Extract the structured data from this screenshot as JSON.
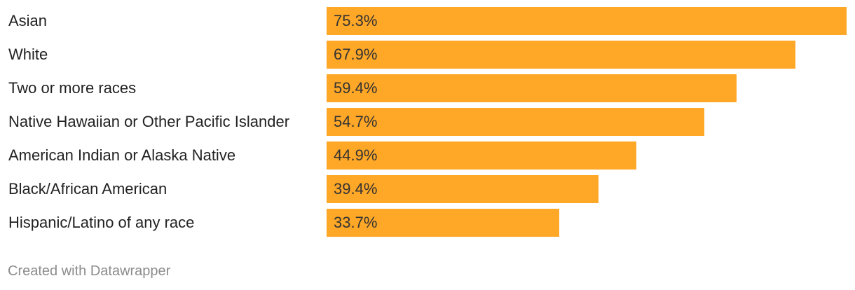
{
  "chart_data": {
    "type": "bar",
    "orientation": "horizontal",
    "categories": [
      "Asian",
      "White",
      "Two or more races",
      "Native Hawaiian or Other Pacific Islander",
      "American Indian or Alaska Native",
      "Black/African American",
      "Hispanic/Latino of any race"
    ],
    "values": [
      75.3,
      67.9,
      59.4,
      54.7,
      44.9,
      39.4,
      33.7
    ],
    "value_labels": [
      "75.3%",
      "67.9%",
      "59.4%",
      "54.7%",
      "44.9%",
      "39.4%",
      "33.7%"
    ],
    "xlim": [
      0,
      75.3
    ],
    "grid": false,
    "legend": "none",
    "bar_color": "#ffa726"
  },
  "footer": {
    "credit": "Created with Datawrapper"
  }
}
